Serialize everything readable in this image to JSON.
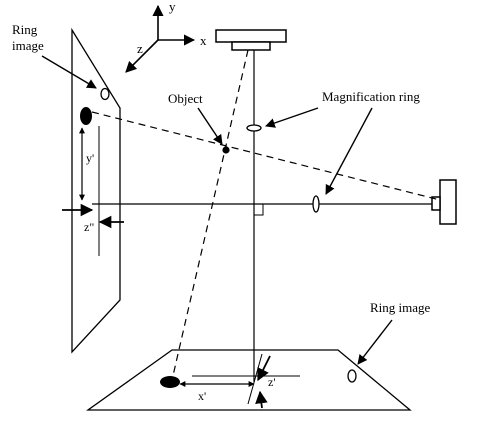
{
  "labels": {
    "ring_image_left_line1": "Ring",
    "ring_image_left_line2": "image",
    "object": "Object",
    "magnification_ring": "Magnification ring",
    "ring_image_bottom": "Ring image",
    "y_prime": "y'",
    "z_double_prime": "z\"",
    "x_prime": "x'",
    "z_prime": "z'"
  },
  "axes": {
    "x": "x",
    "y": "y",
    "z": "z"
  }
}
